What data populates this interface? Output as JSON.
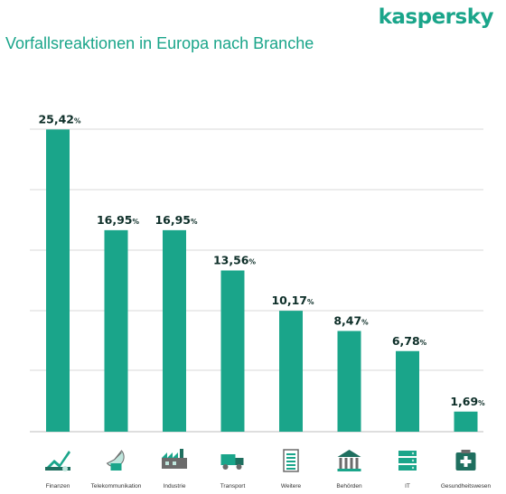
{
  "logo": {
    "text": "kaspersky"
  },
  "colors": {
    "accent": "#1aa58a",
    "bar": "#1aa58a",
    "grid": "#d9d9d9",
    "text": "#0e2f29"
  },
  "chart_data": {
    "type": "bar",
    "title": "Vorfallsreaktionen in Europa nach Branche",
    "categories": [
      "Finanzen",
      "Telekommunikation",
      "Industrie",
      "Transport",
      "Weitere",
      "Behörden",
      "IT",
      "Gesundheitswesen"
    ],
    "values": [
      25.42,
      16.95,
      16.95,
      13.56,
      10.17,
      8.47,
      6.78,
      1.69
    ],
    "value_labels": [
      "25,42",
      "16,95",
      "16,95",
      "13,56",
      "10,17",
      "8,47",
      "6,78",
      "1,69"
    ],
    "value_suffix": "%",
    "icons": [
      "finance-chart-icon",
      "satellite-dish-icon",
      "factory-icon",
      "truck-icon",
      "document-list-icon",
      "government-building-icon",
      "server-stack-icon",
      "medical-kit-icon"
    ],
    "ylim": [
      0,
      27.5
    ],
    "grid": true,
    "xlabel": "",
    "ylabel": ""
  }
}
